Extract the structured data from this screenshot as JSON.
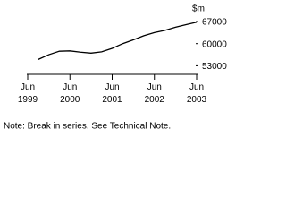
{
  "chart_data": {
    "type": "line",
    "unit_label": "$m",
    "categories": [
      "Jun 1999",
      null,
      null,
      null,
      "Jun 2000",
      null,
      null,
      null,
      "Jun 2001",
      null,
      null,
      null,
      "Jun 2002",
      null,
      null,
      null,
      "Jun 2003"
    ],
    "values": [
      null,
      55000,
      56500,
      57600,
      57700,
      57300,
      57000,
      57400,
      58500,
      60000,
      61200,
      62500,
      63500,
      64200,
      65200,
      66000,
      66800
    ],
    "color": "#000000",
    "ylim": [
      50000,
      67000
    ],
    "yticks": [
      53000,
      60000,
      67000
    ],
    "note": "Note: Break in series. See Technical Note."
  }
}
